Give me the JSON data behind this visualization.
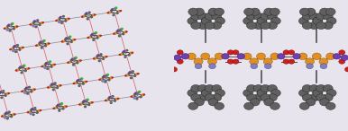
{
  "background_color": "#e8e4ed",
  "fig_width": 3.86,
  "fig_height": 1.46,
  "dpi": 100,
  "atom_colors": {
    "C": "#606060",
    "S": "#e09020",
    "N": "#7040b0",
    "O": "#cc2020",
    "Cu": "#9090b0",
    "Cl": "#40b040",
    "light_blue": "#8080c0"
  }
}
